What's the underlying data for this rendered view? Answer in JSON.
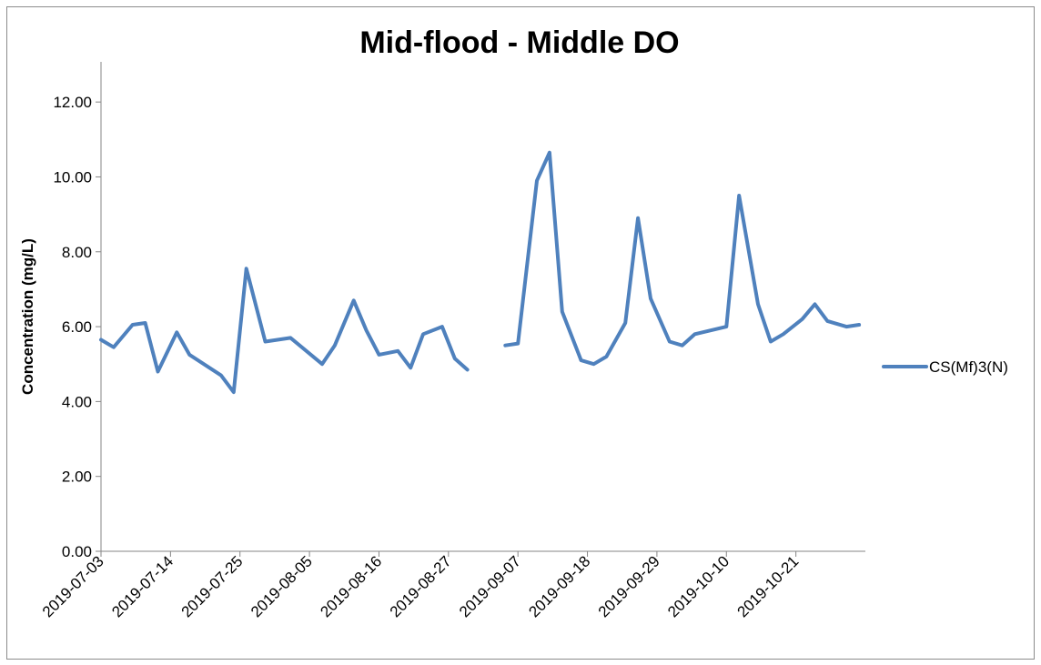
{
  "chart_data": {
    "type": "line",
    "title": "Mid-flood - Middle DO",
    "ylabel": "Concentration (mg/L)",
    "xlabel": "",
    "ylim": [
      0,
      13
    ],
    "yticks": [
      "0.00",
      "2.00",
      "4.00",
      "6.00",
      "8.00",
      "10.00",
      "12.00"
    ],
    "ytick_values": [
      0,
      2,
      4,
      6,
      8,
      10,
      12
    ],
    "xlim": [
      "2019-07-03",
      "2019-11-01"
    ],
    "xticks": [
      "2019-07-03",
      "2019-07-14",
      "2019-07-25",
      "2019-08-05",
      "2019-08-16",
      "2019-08-27",
      "2019-09-07",
      "2019-09-18",
      "2019-09-29",
      "2019-10-10",
      "2019-10-21"
    ],
    "grid": false,
    "legend": "right",
    "series": [
      {
        "name": "CS(Mf)3(N)",
        "color": "#4f81bd",
        "points": [
          [
            "2019-07-03",
            5.65
          ],
          [
            "2019-07-05",
            5.45
          ],
          [
            "2019-07-08",
            6.05
          ],
          [
            "2019-07-10",
            6.1
          ],
          [
            "2019-07-12",
            4.8
          ],
          [
            "2019-07-15",
            5.85
          ],
          [
            "2019-07-17",
            5.25
          ],
          [
            "2019-07-22",
            4.7
          ],
          [
            "2019-07-24",
            4.25
          ],
          [
            "2019-07-26",
            7.55
          ],
          [
            "2019-07-29",
            5.6
          ],
          [
            "2019-08-02",
            5.7
          ],
          [
            "2019-08-07",
            5.0
          ],
          [
            "2019-08-09",
            5.5
          ],
          [
            "2019-08-12",
            6.7
          ],
          [
            "2019-08-14",
            5.9
          ],
          [
            "2019-08-16",
            5.25
          ],
          [
            "2019-08-19",
            5.35
          ],
          [
            "2019-08-21",
            4.9
          ],
          [
            "2019-08-23",
            5.8
          ],
          [
            "2019-08-26",
            6.0
          ],
          [
            "2019-08-28",
            5.15
          ],
          [
            "2019-08-30",
            4.85
          ],
          [
            "2019-09-04",
            null
          ],
          [
            "2019-09-05",
            5.5
          ],
          [
            "2019-09-07",
            5.55
          ],
          [
            "2019-09-10",
            9.9
          ],
          [
            "2019-09-12",
            10.65
          ],
          [
            "2019-09-14",
            6.4
          ],
          [
            "2019-09-17",
            5.1
          ],
          [
            "2019-09-19",
            5.0
          ],
          [
            "2019-09-21",
            5.2
          ],
          [
            "2019-09-24",
            6.1
          ],
          [
            "2019-09-26",
            8.9
          ],
          [
            "2019-09-28",
            6.75
          ],
          [
            "2019-10-01",
            5.6
          ],
          [
            "2019-10-03",
            5.5
          ],
          [
            "2019-10-05",
            5.8
          ],
          [
            "2019-10-10",
            6.0
          ],
          [
            "2019-10-12",
            9.5
          ],
          [
            "2019-10-15",
            6.6
          ],
          [
            "2019-10-17",
            5.6
          ],
          [
            "2019-10-19",
            5.8
          ],
          [
            "2019-10-22",
            6.2
          ],
          [
            "2019-10-24",
            6.6
          ],
          [
            "2019-10-26",
            6.15
          ],
          [
            "2019-10-29",
            6.0
          ],
          [
            "2019-10-31",
            6.05
          ]
        ]
      }
    ]
  }
}
